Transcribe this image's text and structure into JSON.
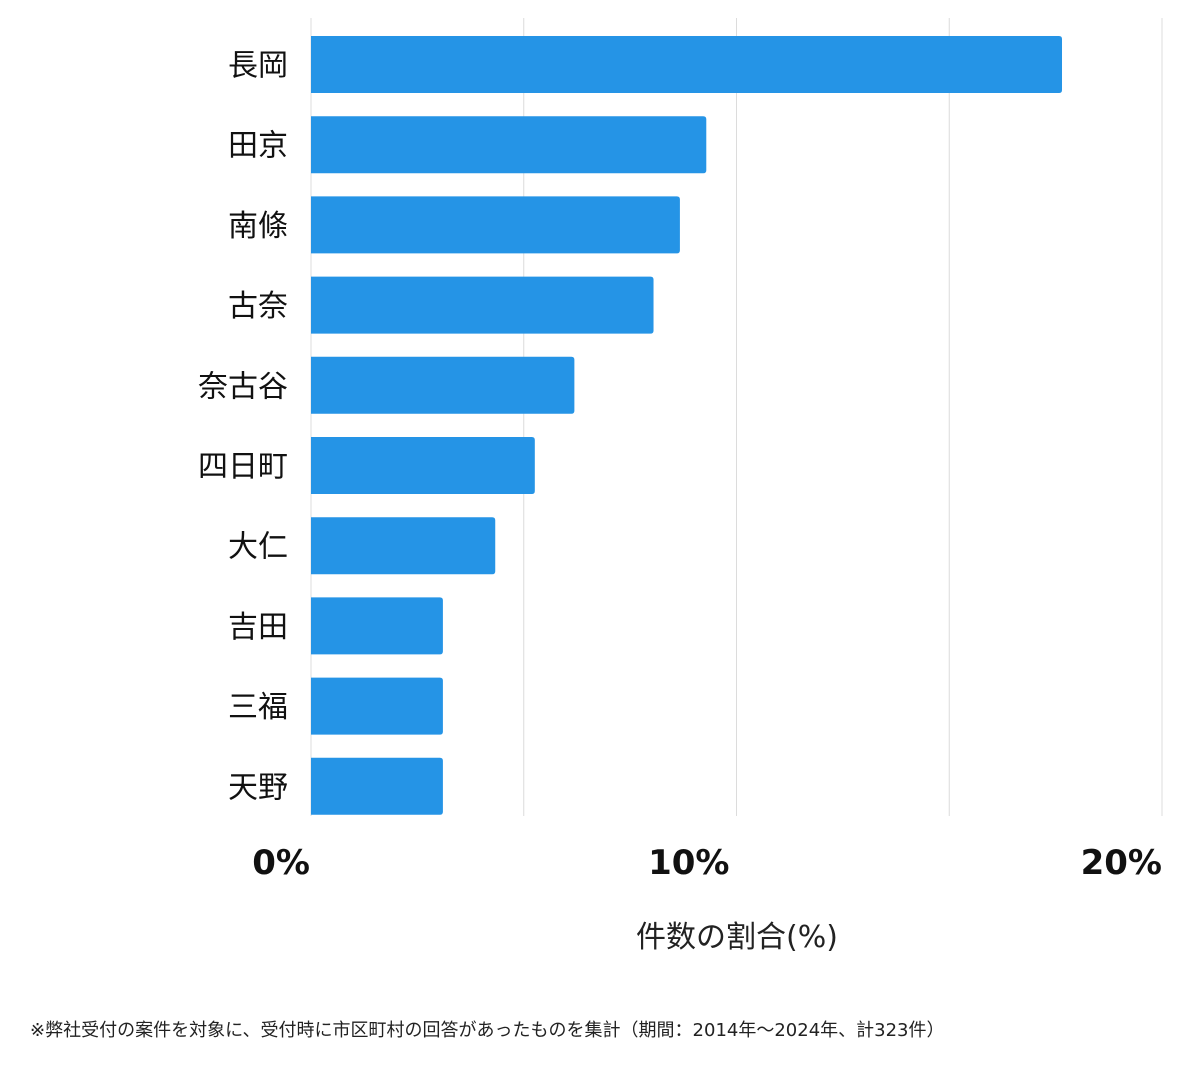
{
  "chart_data": {
    "type": "bar",
    "orientation": "horizontal",
    "categories": [
      "長岡",
      "田京",
      "南條",
      "古奈",
      "奈古谷",
      "四日町",
      "大仁",
      "吉田",
      "三福",
      "天野"
    ],
    "values": [
      17.65,
      9.29,
      8.67,
      8.05,
      6.19,
      5.26,
      4.33,
      3.1,
      3.1,
      3.1
    ],
    "xlim": [
      0,
      20
    ],
    "xticks": [
      0,
      10,
      20
    ],
    "xtick_labels": [
      "0%",
      "10%",
      "20%"
    ],
    "gridlines": [
      0,
      5,
      10,
      15,
      20
    ],
    "xlabel": "件数の割合(%)",
    "ylabel": "",
    "grid": true,
    "bar_color": "#2594e6"
  },
  "footnote": "※弊社受付の案件を対象に、受付時に市区町村の回答があったものを集計（期間：2014年～2024年、計323件）"
}
